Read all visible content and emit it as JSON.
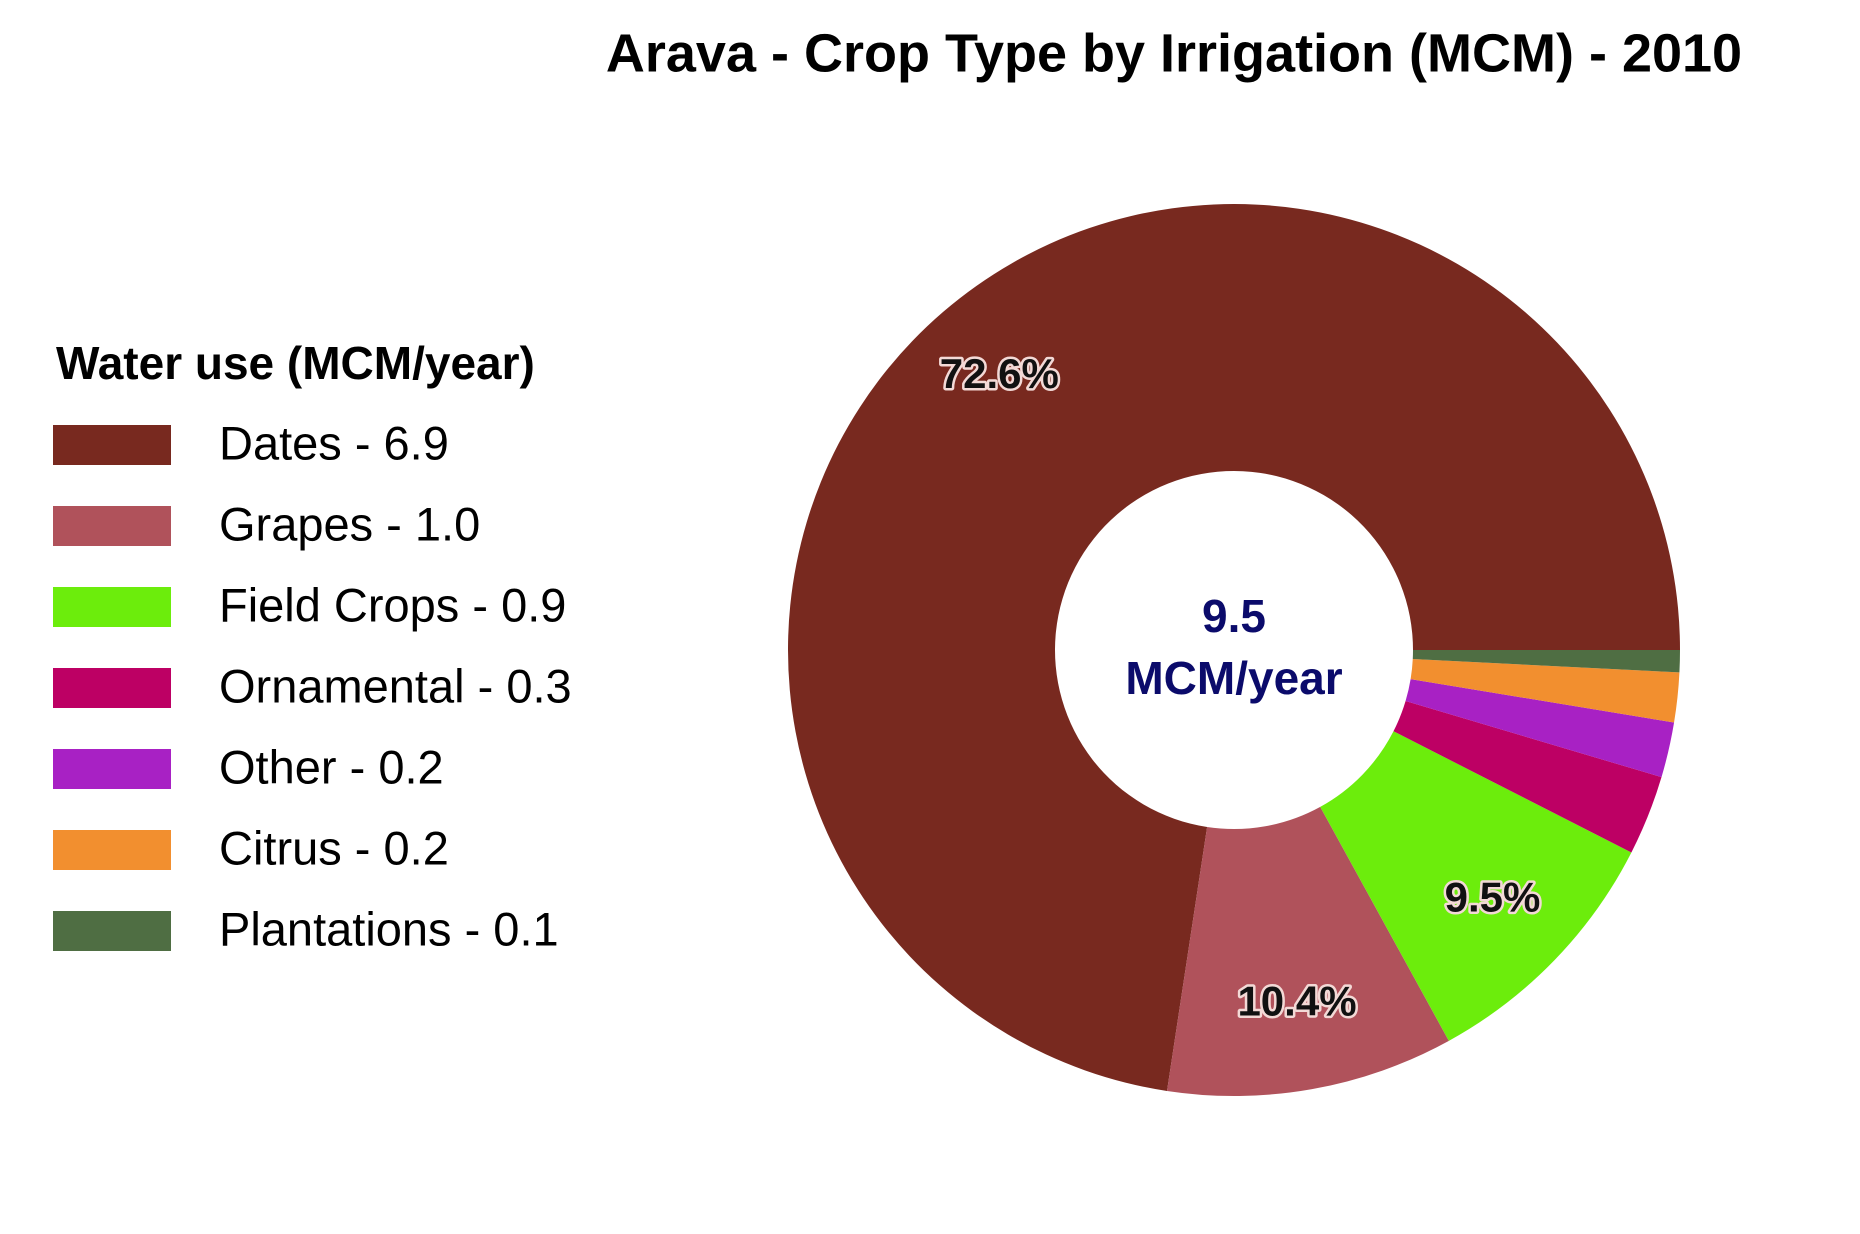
{
  "chart_data": {
    "type": "donut",
    "title": "Arava - Crop Type by Irrigation (MCM) - 2010",
    "legend_title": "Water use (MCM/year)",
    "categories": [
      "Dates - 6.9",
      "Grapes - 1.0",
      "Field Crops - 0.9",
      "Ornamental - 0.3",
      "Other - 0.2",
      "Citrus - 0.2",
      "Plantations - 0.1"
    ],
    "values": [
      72.6,
      10.4,
      9.5,
      2.9,
      2.0,
      1.8,
      0.8
    ],
    "value_labels": [
      "72.6%",
      "10.4%",
      "9.5%",
      null,
      null,
      null,
      null
    ],
    "colors": [
      "#78291f",
      "#b0525b",
      "#6ced0c",
      "#bd0064",
      "#a821c4",
      "#f28f2f",
      "#4f6e43"
    ],
    "center_label": [
      "9.5",
      "MCM/year"
    ],
    "legend": "left"
  }
}
